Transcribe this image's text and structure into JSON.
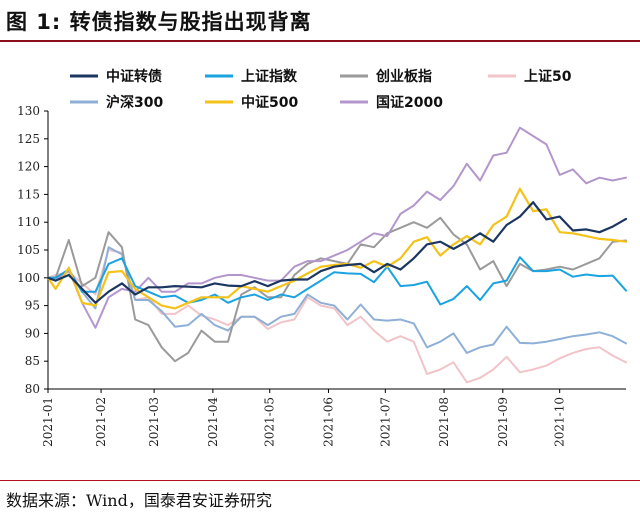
{
  "header": {
    "title": "图 1:  转债指数与股指出现背离"
  },
  "footer": {
    "source": "数据来源：Wind，国泰君安证券研究"
  },
  "chart_data": {
    "type": "line",
    "title": "",
    "xlabel": "",
    "ylabel": "",
    "ylim": [
      80,
      130
    ],
    "yticks": [
      80,
      85,
      90,
      95,
      100,
      105,
      110,
      115,
      120,
      125,
      130
    ],
    "x_tick_labels": [
      "2021-01",
      "2021-02",
      "2021-03",
      "2021-04",
      "2021-05",
      "2021-06",
      "2021-07",
      "2021-08",
      "2021-09",
      "2021-10"
    ],
    "x": [
      "2021-01-04",
      "2021-01-08",
      "2021-01-15",
      "2021-01-22",
      "2021-01-29",
      "2021-02-05",
      "2021-02-12",
      "2021-02-19",
      "2021-02-26",
      "2021-03-05",
      "2021-03-12",
      "2021-03-19",
      "2021-03-26",
      "2021-04-02",
      "2021-04-09",
      "2021-04-16",
      "2021-04-23",
      "2021-04-30",
      "2021-05-07",
      "2021-05-14",
      "2021-05-21",
      "2021-05-28",
      "2021-06-04",
      "2021-06-11",
      "2021-06-18",
      "2021-06-25",
      "2021-07-02",
      "2021-07-09",
      "2021-07-16",
      "2021-07-23",
      "2021-07-30",
      "2021-08-06",
      "2021-08-13",
      "2021-08-20",
      "2021-08-27",
      "2021-09-03",
      "2021-09-10",
      "2021-09-17",
      "2021-09-24",
      "2021-10-01",
      "2021-10-08",
      "2021-10-15",
      "2021-10-22",
      "2021-10-29",
      "2021-11-05"
    ],
    "legend": {
      "position": "top",
      "columns": 4
    },
    "series": [
      {
        "name": "中证转债",
        "color": "#1b3660",
        "width": 2.2,
        "values": [
          100,
          99.5,
          100.5,
          98,
          95.5,
          97.5,
          99,
          97,
          98.3,
          98.3,
          98.5,
          98.4,
          98.3,
          99,
          98.6,
          98.5,
          99.4,
          98.5,
          99.5,
          99.7,
          99.7,
          101.2,
          102,
          102.3,
          102.5,
          101,
          102.5,
          101.5,
          103.5,
          106,
          106.5,
          105.2,
          106.5,
          108,
          106.5,
          109.5,
          111,
          113.6,
          110.5,
          111,
          108.5,
          108.7,
          108.2,
          109.2,
          110.6
        ]
      },
      {
        "name": "上证指数",
        "color": "#1aa3e0",
        "width": 2.0,
        "values": [
          100,
          100,
          101.5,
          97.5,
          97.5,
          102.5,
          103.5,
          98.5,
          97.5,
          96.5,
          96.8,
          95.5,
          96,
          97,
          95.5,
          96.5,
          97,
          96,
          97,
          96.5,
          98,
          99.5,
          101,
          100.8,
          100.7,
          99.2,
          102,
          98.5,
          98.7,
          99.3,
          95.2,
          96.2,
          98.5,
          96,
          99,
          99.5,
          103.7,
          101.2,
          101.2,
          101.5,
          100.2,
          100.6,
          100.3,
          100.4,
          97.7
        ]
      },
      {
        "name": "创业板指",
        "color": "#9a9a9a",
        "width": 2.0,
        "values": [
          100,
          100,
          106.8,
          98.5,
          100,
          108.2,
          105.5,
          92.5,
          91.5,
          87.5,
          85,
          86.5,
          90.5,
          88.5,
          88.5,
          97,
          98.3,
          96.5,
          96.5,
          100.5,
          102.5,
          103.5,
          103,
          102.5,
          106,
          105.5,
          108,
          109,
          110,
          109,
          110.8,
          107.8,
          106,
          101.5,
          103,
          98.5,
          102.5,
          101.2,
          101.5,
          102,
          101.5,
          102.5,
          103.5,
          106.5,
          106.7
        ]
      },
      {
        "name": "上证50",
        "color": "#f0c4c8",
        "width": 2.0,
        "values": [
          100,
          100.5,
          101,
          99,
          97,
          105,
          104.5,
          96,
          96.5,
          93.5,
          93.5,
          95,
          93.2,
          92.5,
          91.5,
          93,
          93,
          90.8,
          92,
          92.5,
          96.5,
          95,
          94.5,
          91.5,
          93,
          90.5,
          88.5,
          89.5,
          88.5,
          82.7,
          83.5,
          84.8,
          81.2,
          82,
          83.5,
          85.8,
          83,
          83.5,
          84.2,
          85.5,
          86.5,
          87.2,
          87.5,
          86,
          84.8
        ]
      },
      {
        "name": "沪深300",
        "color": "#8fb0d6",
        "width": 2.0,
        "values": [
          100,
          100,
          101.2,
          97.5,
          94.5,
          105.5,
          104.2,
          96,
          96,
          94,
          91.2,
          91.5,
          93.5,
          91.5,
          90.5,
          93,
          93,
          91.5,
          93,
          93.5,
          97,
          95.5,
          95,
          92.5,
          95.2,
          92.5,
          92.3,
          92.5,
          91.8,
          87.5,
          88.5,
          90,
          86.5,
          87.5,
          88,
          91.2,
          88.3,
          88.2,
          88.5,
          89,
          89.5,
          89.8,
          90.2,
          89.5,
          88.2
        ]
      },
      {
        "name": "中证500",
        "color": "#f5c21a",
        "width": 2.2,
        "values": [
          100,
          98,
          101.8,
          95.5,
          95,
          101,
          101.2,
          98,
          96.5,
          95,
          94.5,
          95.5,
          96.5,
          96.5,
          96.5,
          98.5,
          98,
          97.5,
          98.5,
          99.5,
          100.8,
          102,
          102.3,
          102.5,
          101.8,
          103,
          102,
          103.5,
          106.5,
          107.3,
          104,
          106,
          107.5,
          106,
          109.5,
          111,
          116,
          112,
          112.3,
          108.2,
          108,
          107.5,
          107,
          106.8,
          106.5
        ]
      },
      {
        "name": "国证2000",
        "color": "#b397cc",
        "width": 2.0,
        "values": [
          100,
          99.5,
          101.5,
          95.5,
          91,
          96.5,
          98,
          97.5,
          100,
          97.5,
          97.5,
          99,
          99,
          100,
          100.5,
          100.5,
          100,
          99.5,
          99.5,
          102,
          103,
          103,
          104,
          105,
          106.5,
          108,
          107.5,
          111.5,
          113,
          115.5,
          114,
          116.5,
          120.5,
          117.5,
          122,
          122.5,
          127,
          125.5,
          124,
          118.5,
          119.5,
          117,
          118,
          117.5,
          118
        ]
      }
    ]
  }
}
